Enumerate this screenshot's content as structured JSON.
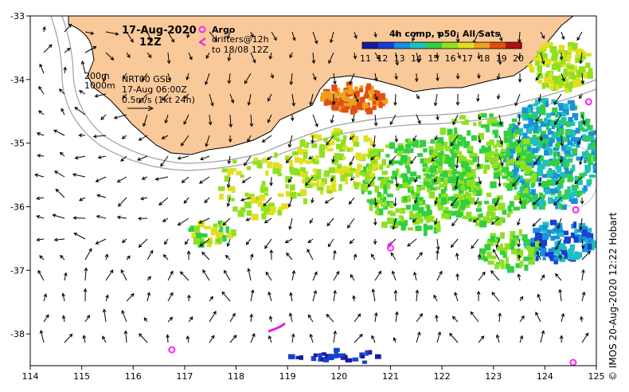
{
  "map": {
    "date_title": "17-Aug-2020",
    "time_title": "12Z",
    "product_lines": [
      "NRT00 GSL",
      "17-Aug 06:00Z",
      "0.5m/s (1kt 24h)"
    ],
    "isobath_labels": [
      "200m",
      "1000m"
    ],
    "argo_label": "Argo",
    "drifter_lines": [
      "drifters@12h",
      "to 18/08 12Z"
    ],
    "credit": "© IMOS 20-Aug-2020 12:22 Hobart",
    "x_axis_ticks": [
      "114",
      "115",
      "116",
      "117",
      "118",
      "119",
      "120",
      "121",
      "122",
      "123",
      "124",
      "125"
    ],
    "y_axis_ticks": [
      "-33",
      "-34",
      "-35",
      "-36",
      "-37",
      "-38"
    ],
    "lon_range": [
      114,
      125
    ],
    "lat_range": [
      -38.5,
      -33
    ],
    "colors": {
      "land": "#F9C99A",
      "argo_marker": "#FF22FF",
      "drifter_track": "#E020E0",
      "isobath": "#A0A0A0"
    }
  },
  "colorbar": {
    "title": "4h comp, p50, All Sats",
    "tick_labels": [
      "11",
      "12",
      "13",
      "14",
      "15",
      "16",
      "17",
      "18",
      "19",
      "20"
    ],
    "colors": [
      "#1A1AA0",
      "#1840D0",
      "#1890E0",
      "#20C0C0",
      "#30D040",
      "#90E020",
      "#E0E020",
      "#F0A020",
      "#E05010",
      "#B01010"
    ]
  },
  "argo_floats": [
    {
      "lon": 124.85,
      "lat": -34.35
    },
    {
      "lon": 124.6,
      "lat": -36.05
    },
    {
      "lon": 121.0,
      "lat": -36.65
    },
    {
      "lon": 116.75,
      "lat": -38.25
    },
    {
      "lon": 124.55,
      "lat": -38.45
    }
  ]
}
